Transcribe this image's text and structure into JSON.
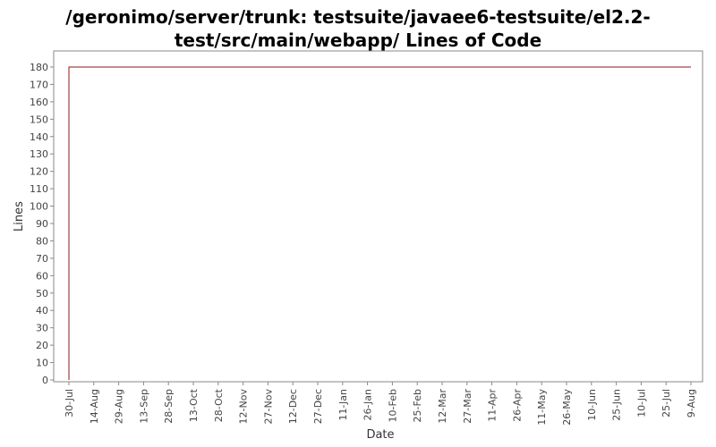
{
  "chart_data": {
    "type": "line",
    "title_lines": [
      "/geronimo/server/trunk: testsuite/javaee6-testsuite/el2.2-",
      "test/src/main/webapp/ Lines of Code"
    ],
    "xlabel": "Date",
    "ylabel": "Lines",
    "ylim": [
      0,
      185
    ],
    "y_ticks": [
      0,
      10,
      20,
      30,
      40,
      50,
      60,
      70,
      80,
      90,
      100,
      110,
      120,
      130,
      140,
      150,
      160,
      170,
      180
    ],
    "x_tick_labels": [
      "30-Jul",
      "14-Aug",
      "29-Aug",
      "13-Sep",
      "28-Sep",
      "13-Oct",
      "28-Oct",
      "12-Nov",
      "27-Nov",
      "12-Dec",
      "27-Dec",
      "11-Jan",
      "26-Jan",
      "10-Feb",
      "25-Feb",
      "12-Mar",
      "27-Mar",
      "11-Apr",
      "26-Apr",
      "11-May",
      "26-May",
      "10-Jun",
      "25-Jun",
      "10-Jul",
      "25-Jul",
      "9-Aug"
    ],
    "series": [
      {
        "color": "#8b1a1a",
        "points": [
          {
            "x": "30-Jul",
            "y": 0
          },
          {
            "x": "30-Jul",
            "y": 180
          },
          {
            "x": "9-Aug",
            "y": 180
          }
        ]
      }
    ],
    "grid": false,
    "legend": "none"
  }
}
